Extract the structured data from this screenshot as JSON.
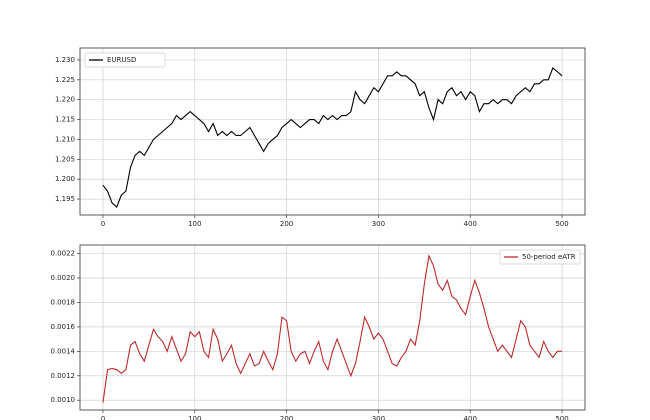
{
  "chart_data": [
    {
      "type": "line",
      "x": [
        0,
        5,
        10,
        15,
        20,
        25,
        30,
        35,
        40,
        45,
        50,
        55,
        60,
        65,
        70,
        75,
        80,
        85,
        90,
        95,
        100,
        105,
        110,
        115,
        120,
        125,
        130,
        135,
        140,
        145,
        150,
        155,
        160,
        165,
        170,
        175,
        180,
        185,
        190,
        195,
        200,
        205,
        210,
        215,
        220,
        225,
        230,
        235,
        240,
        245,
        250,
        255,
        260,
        265,
        270,
        275,
        280,
        285,
        290,
        295,
        300,
        305,
        310,
        315,
        320,
        325,
        330,
        335,
        340,
        345,
        350,
        355,
        360,
        365,
        370,
        375,
        380,
        385,
        390,
        395,
        400,
        405,
        410,
        415,
        420,
        425,
        430,
        435,
        440,
        445,
        450,
        455,
        460,
        465,
        470,
        475,
        480,
        485,
        490,
        495,
        500
      ],
      "series": [
        {
          "name": "EURUSD",
          "color": "#000000",
          "values": [
            1.1985,
            1.197,
            1.194,
            1.193,
            1.196,
            1.197,
            1.203,
            1.206,
            1.207,
            1.206,
            1.208,
            1.21,
            1.211,
            1.212,
            1.213,
            1.214,
            1.216,
            1.215,
            1.216,
            1.217,
            1.216,
            1.215,
            1.214,
            1.212,
            1.214,
            1.211,
            1.212,
            1.211,
            1.212,
            1.211,
            1.211,
            1.212,
            1.213,
            1.211,
            1.209,
            1.207,
            1.209,
            1.21,
            1.211,
            1.213,
            1.214,
            1.215,
            1.214,
            1.213,
            1.214,
            1.215,
            1.215,
            1.214,
            1.216,
            1.215,
            1.216,
            1.215,
            1.216,
            1.216,
            1.217,
            1.222,
            1.22,
            1.219,
            1.221,
            1.223,
            1.222,
            1.224,
            1.226,
            1.226,
            1.227,
            1.226,
            1.226,
            1.225,
            1.224,
            1.221,
            1.222,
            1.218,
            1.215,
            1.22,
            1.219,
            1.222,
            1.223,
            1.221,
            1.222,
            1.22,
            1.222,
            1.221,
            1.217,
            1.219,
            1.219,
            1.22,
            1.219,
            1.22,
            1.22,
            1.219,
            1.221,
            1.222,
            1.223,
            1.222,
            1.224,
            1.224,
            1.225,
            1.225,
            1.228,
            1.227,
            1.226
          ]
        }
      ],
      "xlim": [
        -25,
        525
      ],
      "xticks": [
        0,
        100,
        200,
        300,
        400,
        500
      ],
      "ylim": [
        1.191,
        1.233
      ],
      "yticks": [
        1.195,
        {
          "value": 1.2,
          "label": "1.200"
        },
        1.205,
        {
          "value": 1.21,
          "label": "1.210"
        },
        1.215,
        {
          "value": 1.22,
          "label": "1.220"
        },
        1.225,
        {
          "value": 1.23,
          "label": "1.230"
        }
      ],
      "grid": true,
      "legend": "upper left"
    },
    {
      "type": "line",
      "x": [
        0,
        5,
        10,
        15,
        20,
        25,
        30,
        35,
        40,
        45,
        50,
        55,
        60,
        65,
        70,
        75,
        80,
        85,
        90,
        95,
        100,
        105,
        110,
        115,
        120,
        125,
        130,
        135,
        140,
        145,
        150,
        155,
        160,
        165,
        170,
        175,
        180,
        185,
        190,
        195,
        200,
        205,
        210,
        215,
        220,
        225,
        230,
        235,
        240,
        245,
        250,
        255,
        260,
        265,
        270,
        275,
        280,
        285,
        290,
        295,
        300,
        305,
        310,
        315,
        320,
        325,
        330,
        335,
        340,
        345,
        350,
        355,
        360,
        365,
        370,
        375,
        380,
        385,
        390,
        395,
        400,
        405,
        410,
        415,
        420,
        425,
        430,
        435,
        440,
        445,
        450,
        455,
        460,
        465,
        470,
        475,
        480,
        485,
        490,
        495,
        500
      ],
      "series": [
        {
          "name": "50-period eATR",
          "color": "#c0282b",
          "values": [
            0.00098,
            0.00125,
            0.00126,
            0.00125,
            0.00122,
            0.00125,
            0.00145,
            0.00148,
            0.00138,
            0.00132,
            0.00145,
            0.00158,
            0.00152,
            0.00148,
            0.0014,
            0.00152,
            0.00142,
            0.00132,
            0.00138,
            0.00156,
            0.00152,
            0.00156,
            0.0014,
            0.00135,
            0.00158,
            0.0015,
            0.00132,
            0.00138,
            0.00145,
            0.0013,
            0.00122,
            0.0013,
            0.00138,
            0.00128,
            0.0013,
            0.0014,
            0.00132,
            0.00125,
            0.00138,
            0.00168,
            0.00165,
            0.0014,
            0.00132,
            0.00138,
            0.0014,
            0.0013,
            0.0014,
            0.00148,
            0.00132,
            0.00125,
            0.0014,
            0.0015,
            0.0014,
            0.0013,
            0.0012,
            0.0013,
            0.00148,
            0.00168,
            0.0016,
            0.0015,
            0.00155,
            0.0015,
            0.0014,
            0.0013,
            0.00128,
            0.00135,
            0.0014,
            0.0015,
            0.00145,
            0.00165,
            0.00195,
            0.00218,
            0.0021,
            0.00195,
            0.0019,
            0.00198,
            0.00185,
            0.00182,
            0.00175,
            0.0017,
            0.00185,
            0.00198,
            0.00188,
            0.00175,
            0.0016,
            0.0015,
            0.0014,
            0.00145,
            0.0014,
            0.00135,
            0.0015,
            0.00165,
            0.0016,
            0.00145,
            0.0014,
            0.00135,
            0.00148,
            0.0014,
            0.00135,
            0.0014,
            0.0014
          ]
        }
      ],
      "xlim": [
        -25,
        525
      ],
      "xticks": [
        0,
        100,
        200,
        300,
        400,
        500
      ],
      "ylim": [
        0.00092,
        0.00227
      ],
      "yticks": [
        {
          "value": 0.001,
          "label": "0.0010"
        },
        0.0012,
        0.0014,
        0.0016,
        0.0018,
        {
          "value": 0.002,
          "label": "0.0020"
        },
        0.0022
      ],
      "grid": true,
      "legend": "upper right"
    }
  ]
}
